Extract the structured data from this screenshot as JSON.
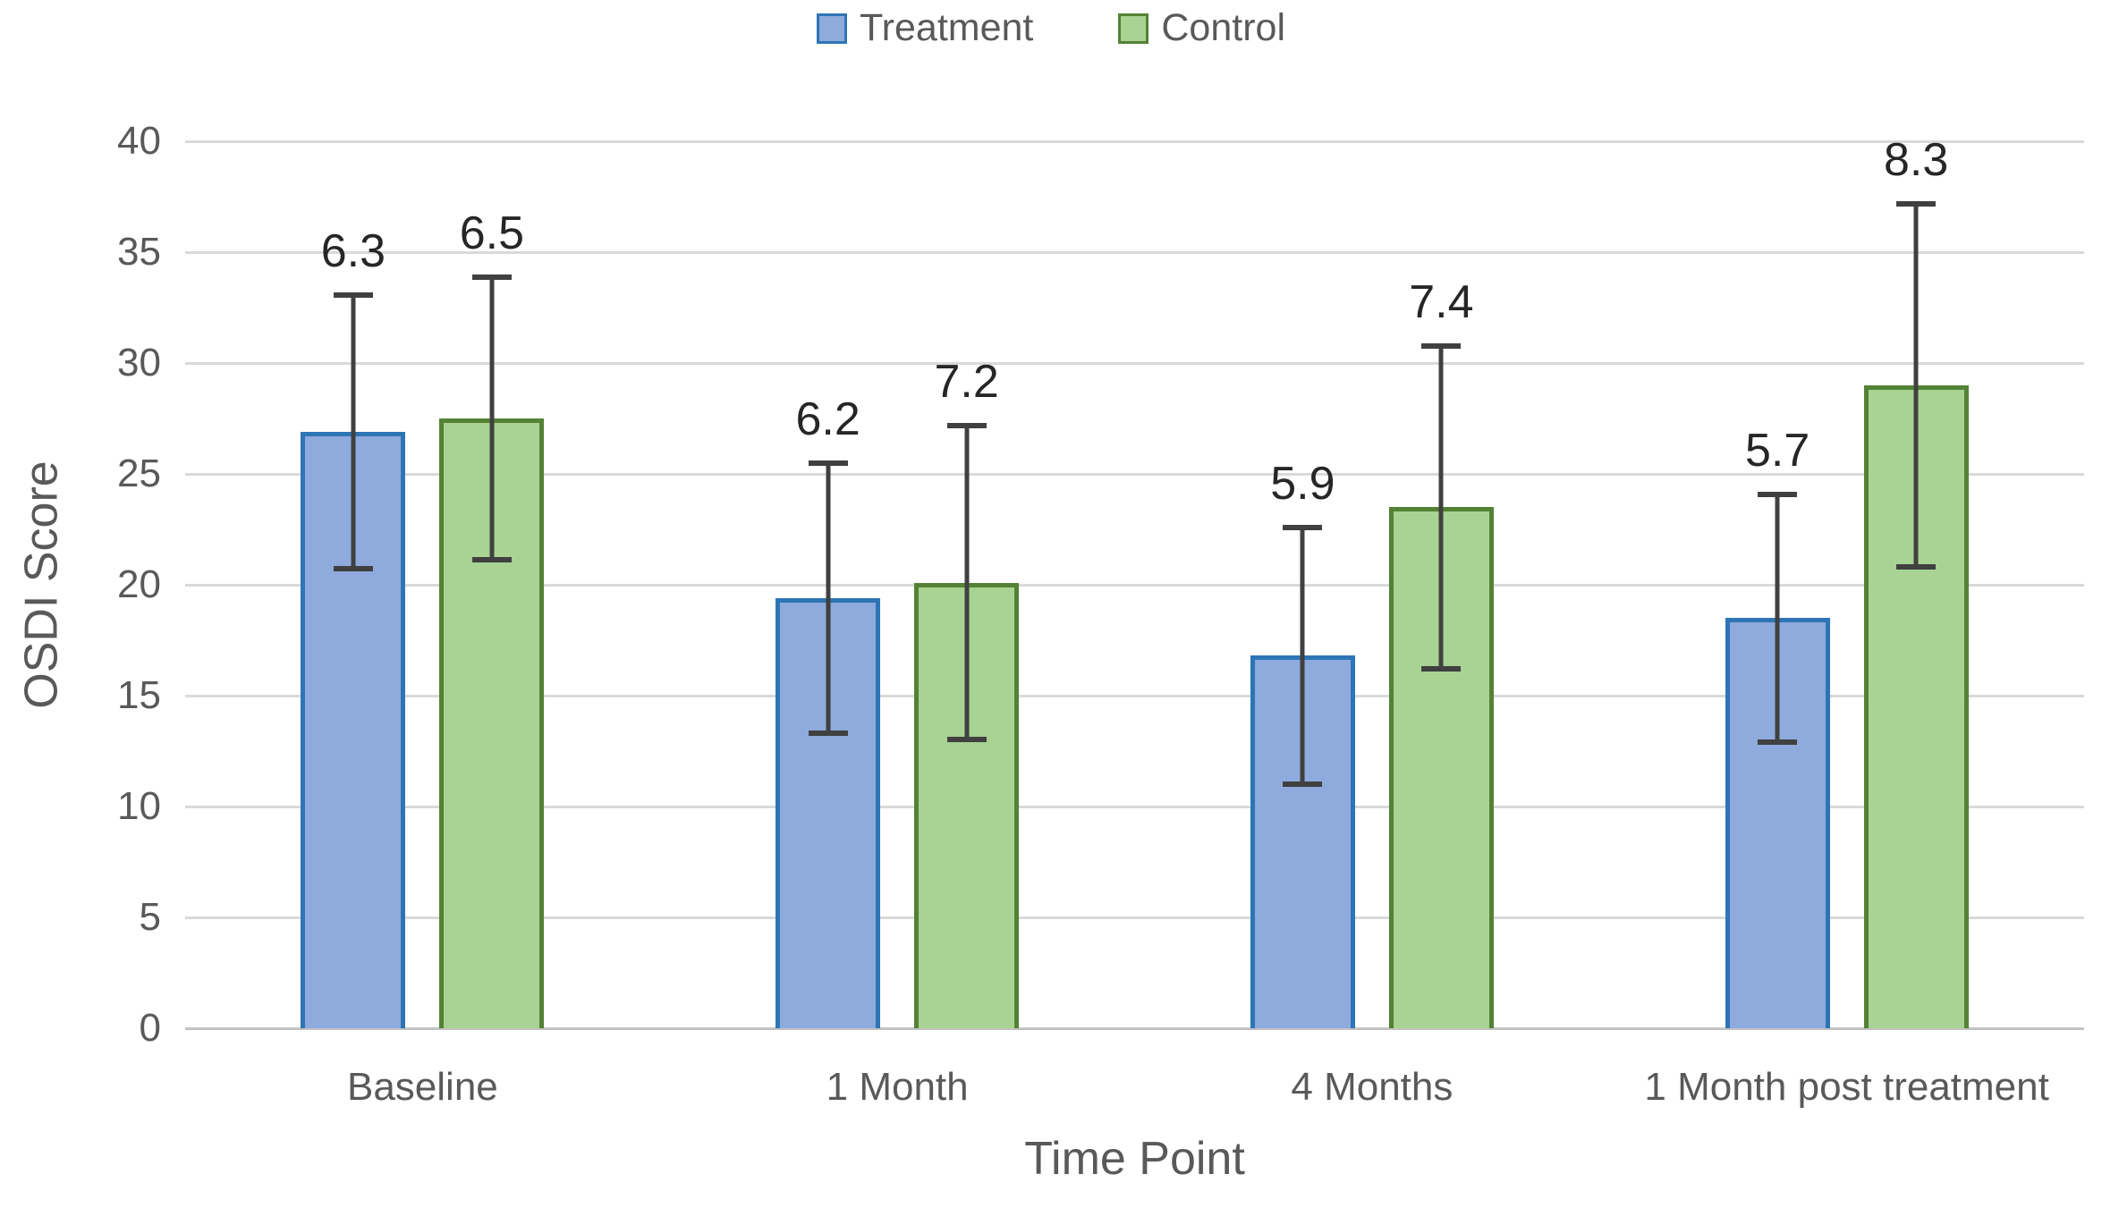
{
  "chart_data": {
    "type": "bar",
    "title": "",
    "categories": [
      "Baseline",
      "1 Month",
      "4 Months",
      "1 Month post treatment"
    ],
    "series": [
      {
        "name": "Treatment",
        "fill": "#8FAADC",
        "border": "#2E75B6",
        "values": [
          26.9,
          19.4,
          16.8,
          18.5
        ],
        "error": [
          6.3,
          6.2,
          5.9,
          5.7
        ],
        "bar_labels": [
          "6.3",
          "6.2",
          "5.9",
          "5.7"
        ]
      },
      {
        "name": "Control",
        "fill": "#A8D392",
        "border": "#548235",
        "values": [
          27.5,
          20.1,
          23.5,
          29.0
        ],
        "error": [
          6.5,
          7.2,
          7.4,
          8.3
        ],
        "bar_labels": [
          "6.5",
          "7.2",
          "7.4",
          "8.3"
        ]
      }
    ],
    "xlabel": "Time Point",
    "ylabel": "OSDI Score",
    "ylim": [
      0,
      40
    ],
    "yticks": [
      0,
      5,
      10,
      15,
      20,
      25,
      30,
      35,
      40
    ],
    "grid": true,
    "legend_position": "top",
    "error_bar_style": "mean ± labeled value, capped whiskers"
  },
  "colors": {
    "gridline": "#D9D9D9",
    "baseline": "#C3C3C3",
    "error_bar": "#404040",
    "axis_text": "#595959",
    "data_label": "#262626",
    "background": "#FFFFFF"
  }
}
